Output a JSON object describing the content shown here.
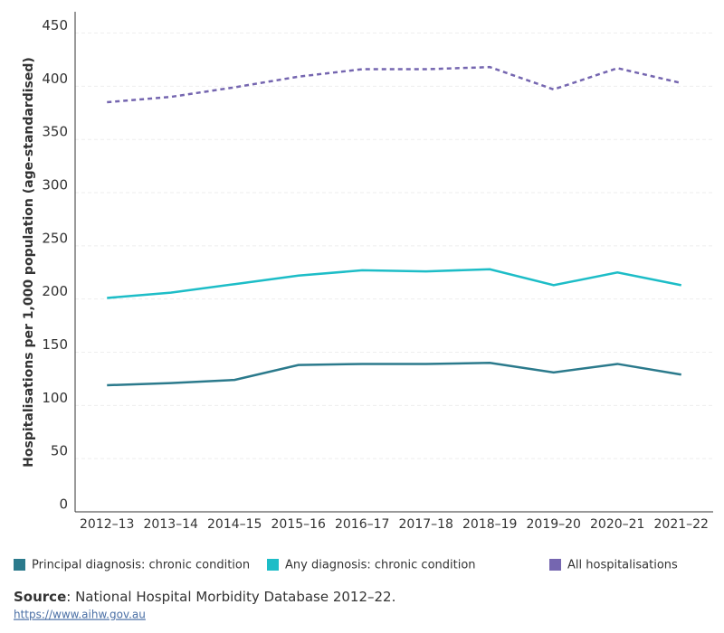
{
  "chart_data": {
    "type": "line",
    "ylabel": "Hospitalisations per 1,000 population (age-standardised)",
    "categories": [
      "2012–13",
      "2013–14",
      "2014–15",
      "2015–16",
      "2016–17",
      "2017–18",
      "2018–19",
      "2019–20",
      "2020–21",
      "2021–22"
    ],
    "series": [
      {
        "name": "Principal diagnosis: chronic condition",
        "color": "#2b7a8c",
        "dashed": false,
        "values": [
          119,
          121,
          124,
          138,
          139,
          139,
          140,
          131,
          139,
          129
        ]
      },
      {
        "name": "Any diagnosis: chronic condition",
        "color": "#1dbdc7",
        "dashed": false,
        "values": [
          201,
          206,
          214,
          222,
          227,
          226,
          228,
          213,
          225,
          213
        ]
      },
      {
        "name": "All hospitalisations",
        "color": "#7566b0",
        "dashed": true,
        "values": [
          385,
          390,
          399,
          409,
          416,
          416,
          418,
          397,
          417,
          403
        ]
      }
    ],
    "ylim": [
      0,
      470
    ],
    "yticks": [
      0,
      50,
      100,
      150,
      200,
      250,
      300,
      350,
      400,
      450
    ],
    "grid": true,
    "source_label": "Source",
    "source_text": ": National Hospital Morbidity Database 2012–22.",
    "url": "https://www.aihw.gov.au"
  }
}
